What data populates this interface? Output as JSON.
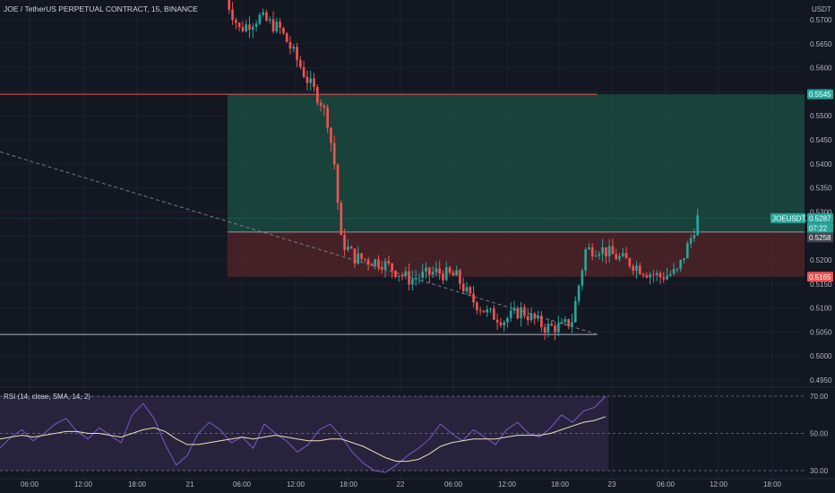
{
  "header": {
    "title": "JOE / TetherUS PERPETUAL CONTRACT, 15, BINANCE",
    "currency": "USDT"
  },
  "colors": {
    "background": "#131722",
    "grid": "#1e2230",
    "up": "#26a69a",
    "down": "#ef5350",
    "profit_zone": "#1b4a40",
    "loss_zone": "#4a2228",
    "rsi": "#7e57c2",
    "rsi_ma": "#e8e0b8",
    "rsi_band": "#2a2540",
    "text": "#b2b5be"
  },
  "chart_data": [
    {
      "type": "candlestick",
      "title": "JOE / TetherUS PERPETUAL CONTRACT, 15, BINANCE",
      "ylabel": "USDT",
      "ylim": [
        0.4925,
        0.5725
      ],
      "y_ticks": [
        "0.5700",
        "0.5650",
        "0.5600",
        "0.5550",
        "0.5500",
        "0.5450",
        "0.5400",
        "0.5350",
        "0.5300",
        "0.5250",
        "0.5200",
        "0.5150",
        "0.5100",
        "0.5050",
        "0.5000",
        "0.4950"
      ],
      "x_ticks": [
        "06:00",
        "12:00",
        "18:00",
        "21",
        "06:00",
        "12:00",
        "18:00",
        "22",
        "06:00",
        "12:00",
        "18:00",
        "23",
        "06:00",
        "12:00",
        "18:00"
      ],
      "x_range_bars": [
        0,
        237
      ],
      "price_tags": [
        {
          "label": "0.5545",
          "value": 0.5545,
          "color": "#26a69a"
        },
        {
          "label": "JOEUSDT.P",
          "value": 0.5287,
          "color": "#26a69a"
        },
        {
          "label": "0.5287",
          "value": 0.5287,
          "color": "#26a69a"
        },
        {
          "label": "07:22",
          "value": 0.5272,
          "color": "#26a69a"
        },
        {
          "label": "0.5258",
          "value": 0.5258,
          "color": "#434651"
        },
        {
          "label": "0.5165",
          "value": 0.5165,
          "color": "#ef5350"
        }
      ],
      "horizontal_lines": [
        {
          "value": 0.5545,
          "color": "#ef5350",
          "from_bar": 0,
          "to_bar": 176
        },
        {
          "value": 0.5045,
          "color": "#b2b5be",
          "from_bar": 0,
          "to_bar": 176
        }
      ],
      "trend_line": {
        "from": [
          0,
          0.5425
        ],
        "to": [
          176,
          0.5045
        ],
        "style": "dashed"
      },
      "position": {
        "from_bar": 67,
        "to_bar": 237,
        "target": 0.5545,
        "entry": 0.5258,
        "stop": 0.5165
      },
      "anchors": [
        [
          66,
          0.5745
        ],
        [
          70,
          0.568
        ],
        [
          76,
          0.5705
        ],
        [
          82,
          0.568
        ],
        [
          86,
          0.563
        ],
        [
          90,
          0.5575
        ],
        [
          94,
          0.553
        ],
        [
          96,
          0.549
        ],
        [
          98,
          0.54
        ],
        [
          100,
          0.524
        ],
        [
          104,
          0.5205
        ],
        [
          112,
          0.5195
        ],
        [
          120,
          0.516
        ],
        [
          128,
          0.5175
        ],
        [
          134,
          0.5165
        ],
        [
          138,
          0.512
        ],
        [
          143,
          0.509
        ],
        [
          148,
          0.5075
        ],
        [
          153,
          0.5095
        ],
        [
          160,
          0.506
        ],
        [
          165,
          0.506
        ],
        [
          168,
          0.5075
        ],
        [
          172,
          0.522
        ],
        [
          176,
          0.5225
        ],
        [
          180,
          0.521
        ],
        [
          185,
          0.5195
        ],
        [
          190,
          0.5175
        ],
        [
          194,
          0.5165
        ],
        [
          199,
          0.5175
        ],
        [
          203,
          0.5245
        ],
        [
          205,
          0.5287
        ]
      ]
    },
    {
      "type": "line",
      "title": "RSI (14, close, SMA, 14, 2)",
      "ylim": [
        30,
        70
      ],
      "y_ticks": [
        "70.00",
        "50.00",
        "30.00"
      ],
      "series": [
        {
          "name": "RSI",
          "values": [
            42,
            48,
            52,
            46,
            50,
            55,
            58,
            51,
            47,
            53,
            49,
            45,
            60,
            66,
            58,
            44,
            33,
            38,
            50,
            56,
            52,
            45,
            48,
            42,
            55,
            50,
            46,
            40,
            44,
            52,
            55,
            48,
            40,
            34,
            30,
            29,
            33,
            38,
            42,
            47,
            55,
            50,
            46,
            52,
            48,
            44,
            52,
            56,
            50,
            48,
            53,
            60,
            56,
            62,
            64,
            70
          ]
        },
        {
          "name": "MA",
          "values": [
            47,
            48,
            49,
            48,
            49,
            50,
            51,
            51,
            50,
            50,
            49,
            48,
            50,
            52,
            53,
            51,
            47,
            44,
            44,
            45,
            46,
            47,
            48,
            47,
            48,
            49,
            48,
            47,
            46,
            46,
            47,
            47,
            45,
            43,
            40,
            37,
            35,
            35,
            36,
            39,
            43,
            45,
            46,
            47,
            47,
            47,
            48,
            49,
            49,
            49,
            50,
            52,
            54,
            56,
            57,
            59
          ]
        }
      ],
      "bands": [
        70,
        50,
        30
      ]
    }
  ]
}
